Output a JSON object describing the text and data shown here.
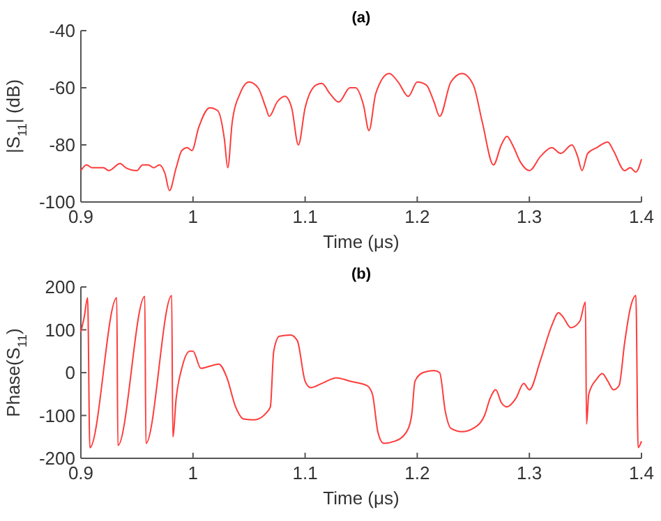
{
  "chart_data": [
    {
      "type": "line",
      "title": "(a)",
      "xlabel": "Time (μs)",
      "ylabel": "|S$_{11}$| (dB)",
      "xlim": [
        0.9,
        1.4
      ],
      "xticks": [
        0.9,
        1,
        1.1,
        1.2,
        1.3,
        1.4
      ],
      "ylim": [
        -100,
        -40
      ],
      "yticks": [
        -100,
        -80,
        -60,
        -40
      ],
      "series": [
        {
          "color": "#ff3b3b",
          "x": [
            0.9,
            0.905,
            0.91,
            0.92,
            0.925,
            0.935,
            0.94,
            0.95,
            0.955,
            0.96,
            0.965,
            0.97,
            0.975,
            0.979,
            0.985,
            0.99,
            0.995,
            0.999,
            1.005,
            1.015,
            1.022,
            1.028,
            1.031,
            1.035,
            1.042,
            1.05,
            1.058,
            1.065,
            1.068,
            1.075,
            1.082,
            1.088,
            1.094,
            1.1,
            1.11,
            1.115,
            1.122,
            1.13,
            1.14,
            1.145,
            1.152,
            1.157,
            1.163,
            1.175,
            1.183,
            1.192,
            1.2,
            1.208,
            1.215,
            1.22,
            1.23,
            1.24,
            1.25,
            1.258,
            1.268,
            1.275,
            1.28,
            1.285,
            1.292,
            1.3,
            1.31,
            1.32,
            1.328,
            1.338,
            1.343,
            1.347,
            1.352,
            1.36,
            1.37,
            1.375,
            1.385,
            1.39,
            1.395,
            1.4
          ],
          "values": [
            -89,
            -87,
            -88,
            -88,
            -89,
            -86.5,
            -88,
            -89,
            -87,
            -87,
            -88,
            -87,
            -90,
            -96,
            -88,
            -82,
            -81,
            -82,
            -74,
            -67,
            -68,
            -78,
            -88,
            -72,
            -62,
            -58,
            -60,
            -67,
            -70,
            -65,
            -63,
            -67,
            -80,
            -67,
            -59,
            -58.5,
            -62,
            -65,
            -60,
            -60,
            -66,
            -75,
            -62,
            -55,
            -58,
            -63,
            -58,
            -59,
            -65,
            -70,
            -58,
            -55,
            -59,
            -72,
            -87,
            -80,
            -77,
            -80,
            -86,
            -89,
            -84,
            -81,
            -83,
            -80,
            -84,
            -89,
            -83,
            -81,
            -79,
            -82,
            -89,
            -88,
            -89.5,
            -85
          ]
        }
      ]
    },
    {
      "type": "line",
      "title": "(b)",
      "xlabel": "Time (μs)",
      "ylabel": "Phase(S$_{11}$)",
      "xlim": [
        0.9,
        1.4
      ],
      "xticks": [
        0.9,
        1,
        1.1,
        1.2,
        1.3,
        1.4
      ],
      "ylim": [
        -200,
        200
      ],
      "yticks": [
        -200,
        -100,
        0,
        100,
        200
      ],
      "series": [
        {
          "color": "#ff3b3b",
          "x": [
            0.9,
            0.903,
            0.906,
            0.908,
            0.932,
            0.933,
            0.957,
            0.958,
            0.981,
            0.982,
            0.985,
            0.99,
            0.997,
            1.0,
            1.007,
            1.015,
            1.023,
            1.03,
            1.038,
            1.045,
            1.055,
            1.065,
            1.069,
            1.072,
            1.077,
            1.087,
            1.093,
            1.1,
            1.105,
            1.115,
            1.128,
            1.14,
            1.155,
            1.16,
            1.165,
            1.17,
            1.18,
            1.19,
            1.195,
            1.198,
            1.205,
            1.215,
            1.22,
            1.225,
            1.23,
            1.24,
            1.25,
            1.26,
            1.265,
            1.27,
            1.275,
            1.28,
            1.288,
            1.295,
            1.3,
            1.31,
            1.32,
            1.326,
            1.33,
            1.337,
            1.345,
            1.35,
            1.351,
            1.353,
            1.36,
            1.365,
            1.37,
            1.375,
            1.38,
            1.385,
            1.39,
            1.395,
            1.397,
            1.4
          ],
          "values": [
            95,
            130,
            175,
            -175,
            175,
            -170,
            178,
            -165,
            180,
            -150,
            -60,
            10,
            50,
            50,
            10,
            15,
            20,
            -10,
            -80,
            -108,
            -110,
            -95,
            -80,
            50,
            85,
            88,
            75,
            -20,
            -35,
            -25,
            -12,
            -20,
            -30,
            -50,
            -140,
            -165,
            -160,
            -140,
            -100,
            -20,
            0,
            5,
            0,
            -90,
            -130,
            -138,
            -130,
            -100,
            -60,
            -40,
            -70,
            -80,
            -60,
            -25,
            -40,
            30,
            110,
            140,
            130,
            105,
            120,
            165,
            -120,
            -50,
            -15,
            -2,
            -20,
            -40,
            -30,
            70,
            150,
            180,
            -175,
            -160
          ]
        }
      ]
    }
  ]
}
